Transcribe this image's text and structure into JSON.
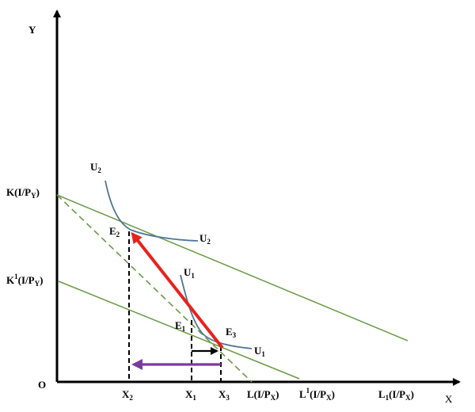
{
  "axes": {
    "y_label": "Y",
    "x_label": "X",
    "origin_label": "O"
  },
  "y_axis_labels": [
    {
      "main": "K(I/P",
      "sub": "Y",
      "tail": ")"
    },
    {
      "main": "K",
      "sup": "1",
      "mid": "(I/P",
      "sub": "Y",
      "tail": ")"
    }
  ],
  "x_axis_labels": [
    {
      "main": "X",
      "sub": "2"
    },
    {
      "main": "X",
      "sub": "1"
    },
    {
      "main": "X",
      "sub": "3"
    },
    {
      "main": "L(I/P",
      "sub": "X",
      "tail": ")"
    },
    {
      "main": "L",
      "sup": "1",
      "mid": "(I/P",
      "sub": "X",
      "tail": ")"
    },
    {
      "main": "L",
      "sub": "1",
      "mid": "(I/P",
      "sub2": "X",
      "tail": ")"
    }
  ],
  "curve_labels": [
    {
      "main": "U",
      "sub": "2"
    },
    {
      "main": "U",
      "sub": "2"
    },
    {
      "main": "U",
      "sub": "1"
    },
    {
      "main": "U",
      "sub": "1"
    }
  ],
  "point_labels": [
    {
      "main": "E",
      "sub": "2"
    },
    {
      "main": "E",
      "sub": "1"
    },
    {
      "main": "E",
      "sub": "3"
    }
  ],
  "colors": {
    "axis": "#000000",
    "budget_line": "#6a9a45",
    "indifference_curve": "#4e7596",
    "substitution_arrow": "#e8221c",
    "income_effect_arrow": "#7b3b9e",
    "dashed_projection": "#000000"
  }
}
